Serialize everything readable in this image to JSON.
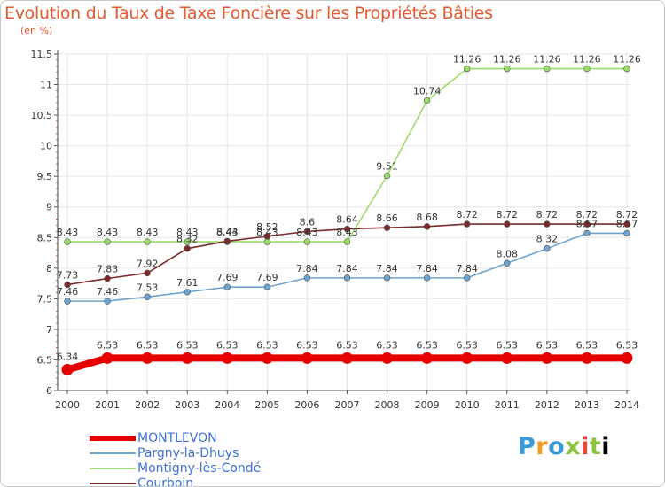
{
  "chart_data": {
    "type": "line",
    "title": "Evolution du Taux de Taxe Foncière sur les Propriétés Bâties",
    "ylabel": "(en %)",
    "xlabel": "",
    "categories": [
      "2000",
      "2001",
      "2002",
      "2003",
      "2004",
      "2005",
      "2006",
      "2007",
      "2008",
      "2009",
      "2010",
      "2011",
      "2012",
      "2013",
      "2014"
    ],
    "ylim": [
      6,
      11.5
    ],
    "yticks": [
      "6",
      "6.5",
      "7",
      "7.5",
      "8",
      "8.5",
      "9",
      "9.5",
      "10",
      "10.5",
      "11",
      "11.5"
    ],
    "series": [
      {
        "name": "MONTLEVON",
        "color": "#e60000",
        "values": [
          6.34,
          6.53,
          6.53,
          6.53,
          6.53,
          6.53,
          6.53,
          6.53,
          6.53,
          6.53,
          6.53,
          6.53,
          6.53,
          6.53,
          6.53
        ],
        "labels": [
          "6.34",
          "6.53",
          "6.53",
          "6.53",
          "6.53",
          "6.53",
          "6.53",
          "6.53",
          "6.53",
          "6.53",
          "6.53",
          "6.53",
          "6.53",
          "6.53",
          "6.53"
        ]
      },
      {
        "name": "Pargny-la-Dhuys",
        "color": "#6ea3cf",
        "values": [
          7.46,
          7.46,
          7.53,
          7.61,
          7.69,
          7.69,
          7.84,
          7.84,
          7.84,
          7.84,
          7.84,
          8.08,
          8.32,
          8.57,
          8.57
        ],
        "labels": [
          "7.46",
          "7.46",
          "7.53",
          "7.61",
          "7.69",
          "7.69",
          "7.84",
          "7.84",
          "7.84",
          "7.84",
          "7.84",
          "8.08",
          "8.32",
          "8.57",
          "8.57"
        ]
      },
      {
        "name": "Montigny-lès-Condé",
        "color": "#99dd66",
        "values": [
          8.43,
          8.43,
          8.43,
          8.43,
          8.43,
          8.43,
          8.43,
          8.43,
          9.51,
          10.74,
          11.26,
          11.26,
          11.26,
          11.26,
          11.26
        ],
        "labels": [
          "8.43",
          "8.43",
          "8.43",
          "8.43",
          "8.43",
          "8.43",
          "8.43",
          "8.43",
          "9.51",
          "10.74",
          "11.26",
          "11.26",
          "11.26",
          "11.26",
          "11.26"
        ]
      },
      {
        "name": "Courboin",
        "color": "#7a2a2a",
        "values": [
          7.73,
          7.83,
          7.92,
          8.32,
          8.44,
          8.52,
          8.6,
          8.64,
          8.66,
          8.68,
          8.72,
          8.72,
          8.72,
          8.72,
          8.72
        ],
        "labels": [
          "7.73",
          "7.83",
          "7.92",
          "8.32",
          "8.44",
          "8.52",
          "8.6",
          "8.64",
          "8.66",
          "8.68",
          "8.72",
          "8.72",
          "8.72",
          "8.72",
          "8.72"
        ]
      }
    ]
  },
  "legend": {
    "items": [
      {
        "label": "MONTLEVON",
        "color": "#e60000"
      },
      {
        "label": "Pargny-la-Dhuys",
        "color": "#6ea3cf"
      },
      {
        "label": "Montigny-lès-Condé",
        "color": "#99dd66"
      },
      {
        "label": "Courboin",
        "color": "#7a2a2a"
      }
    ]
  },
  "logo": {
    "letters": [
      "P",
      "r",
      "o",
      "x",
      "i",
      "t",
      "i"
    ]
  }
}
